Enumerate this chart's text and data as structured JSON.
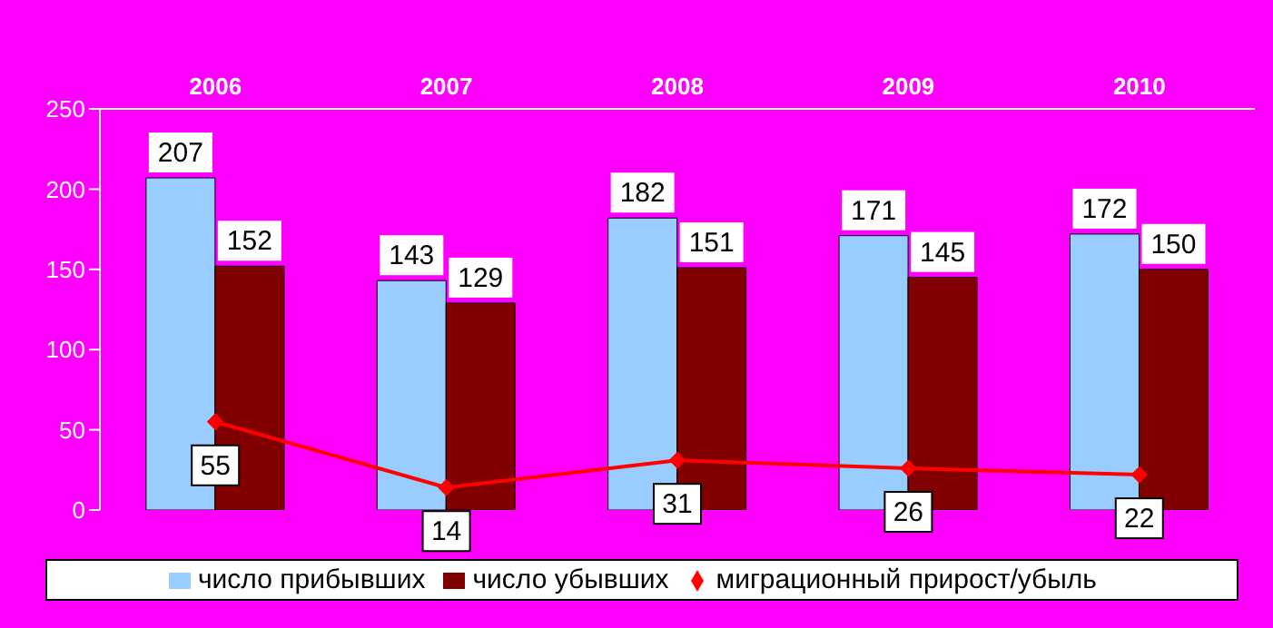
{
  "chart_data": {
    "type": "bar",
    "categories": [
      "2006",
      "2007",
      "2008",
      "2009",
      "2010"
    ],
    "series": [
      {
        "name": "число прибывших",
        "color": "#99ccff",
        "values": [
          207,
          143,
          182,
          171,
          172
        ]
      },
      {
        "name": "число убывших",
        "color": "#800000",
        "values": [
          152,
          129,
          151,
          145,
          150
        ]
      },
      {
        "name": "миграционный прирост/убыль",
        "type": "line",
        "color": "#ff0000",
        "values": [
          55,
          14,
          31,
          26,
          22
        ]
      }
    ],
    "ylim": [
      0,
      250
    ],
    "yticks": [
      0,
      50,
      100,
      150,
      200,
      250
    ],
    "data_labels": true,
    "legend": "bottom",
    "marker": "diamond",
    "line_style": "solid"
  }
}
